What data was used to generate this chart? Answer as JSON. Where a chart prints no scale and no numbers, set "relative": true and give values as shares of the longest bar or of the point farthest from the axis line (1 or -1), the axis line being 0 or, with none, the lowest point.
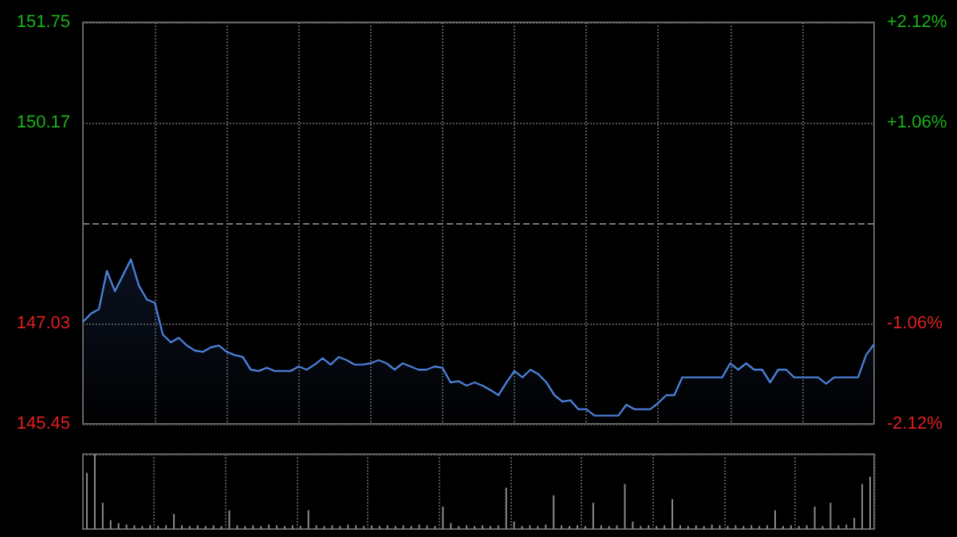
{
  "chart_data": [
    {
      "type": "area",
      "categories": [
        null,
        null,
        null,
        null,
        null,
        null,
        null,
        null,
        null,
        null,
        null,
        null,
        null,
        null,
        null,
        null,
        null,
        null,
        null,
        null,
        null,
        null,
        null,
        null,
        null,
        null,
        null,
        null,
        null,
        null,
        null,
        null,
        null,
        null,
        null,
        null,
        null,
        null,
        null,
        null,
        null,
        null,
        null,
        null,
        null,
        null,
        null,
        null,
        null,
        null,
        null,
        null,
        null,
        null,
        null,
        null,
        null,
        null,
        null,
        null,
        null,
        null,
        null,
        null,
        null,
        null,
        null,
        null,
        null,
        null,
        null,
        null,
        null,
        null,
        null,
        null,
        null,
        null,
        null,
        null,
        null,
        null,
        null,
        null,
        null,
        null,
        null,
        null,
        null,
        null,
        null,
        null,
        null,
        null,
        null,
        null,
        null,
        null,
        null,
        null
      ],
      "series": [
        {
          "color": "#4a7fd6",
          "values": [
            147.05,
            147.18,
            147.25,
            147.85,
            147.53,
            147.78,
            148.03,
            147.62,
            147.4,
            147.35,
            146.85,
            146.73,
            146.8,
            146.68,
            146.6,
            146.58,
            146.65,
            146.68,
            146.58,
            146.53,
            146.5,
            146.3,
            146.28,
            146.33,
            146.28,
            146.28,
            146.28,
            146.35,
            146.3,
            146.38,
            146.48,
            146.38,
            146.5,
            146.45,
            146.38,
            146.38,
            146.4,
            146.45,
            146.4,
            146.3,
            146.4,
            146.35,
            146.3,
            146.3,
            146.35,
            146.33,
            146.1,
            146.12,
            146.05,
            146.1,
            146.05,
            145.98,
            145.9,
            146.1,
            146.28,
            146.18,
            146.3,
            146.23,
            146.1,
            145.9,
            145.8,
            145.82,
            145.68,
            145.68,
            145.58,
            145.58,
            145.58,
            145.58,
            145.75,
            145.68,
            145.68,
            145.68,
            145.78,
            145.9,
            145.9,
            146.18,
            146.18,
            146.18,
            146.18,
            146.18,
            146.18,
            146.4,
            146.3,
            146.4,
            146.3,
            146.3,
            146.1,
            146.3,
            146.3,
            146.18,
            146.18,
            146.18,
            146.18,
            146.08,
            146.18,
            146.18,
            146.18,
            146.18,
            146.53,
            146.7
          ]
        }
      ],
      "ylim": [
        145.45,
        151.75
      ],
      "yticks": [
        145.45,
        147.03,
        150.17,
        151.75
      ],
      "y2lim": [
        -2.12,
        2.12
      ],
      "y2ticks": [
        {
          "value": -2.12,
          "label": "-2.12%"
        },
        {
          "value": -1.06,
          "label": "-1.06%"
        },
        {
          "value": 1.06,
          "label": "+1.06%"
        },
        {
          "value": 2.12,
          "label": "+2.12%"
        }
      ],
      "ref_lines": [
        {
          "axis": "y",
          "value": 148.6,
          "line_style": "dashed",
          "color": "#777777"
        }
      ],
      "grid": true,
      "marker": "none"
    },
    {
      "type": "bar",
      "relative": true,
      "categories": [
        null,
        null,
        null,
        null,
        null,
        null,
        null,
        null,
        null,
        null,
        null,
        null,
        null,
        null,
        null,
        null,
        null,
        null,
        null,
        null,
        null,
        null,
        null,
        null,
        null,
        null,
        null,
        null,
        null,
        null,
        null,
        null,
        null,
        null,
        null,
        null,
        null,
        null,
        null,
        null,
        null,
        null,
        null,
        null,
        null,
        null,
        null,
        null,
        null,
        null,
        null,
        null,
        null,
        null,
        null,
        null,
        null,
        null,
        null,
        null,
        null,
        null,
        null,
        null,
        null,
        null,
        null,
        null,
        null,
        null,
        null,
        null,
        null,
        null,
        null,
        null,
        null,
        null,
        null,
        null,
        null,
        null,
        null,
        null,
        null,
        null,
        null,
        null,
        null,
        null,
        null,
        null,
        null,
        null,
        null,
        null,
        null,
        null,
        null,
        null
      ],
      "color": "#8c8c8c",
      "values": [
        0.75,
        1.0,
        0.35,
        0.12,
        0.08,
        0.06,
        0.05,
        0.04,
        0.05,
        0.04,
        0.05,
        0.2,
        0.05,
        0.04,
        0.05,
        0.04,
        0.05,
        0.04,
        0.25,
        0.05,
        0.04,
        0.05,
        0.04,
        0.06,
        0.05,
        0.04,
        0.05,
        0.04,
        0.25,
        0.05,
        0.04,
        0.05,
        0.04,
        0.06,
        0.05,
        0.04,
        0.05,
        0.04,
        0.05,
        0.04,
        0.05,
        0.04,
        0.06,
        0.05,
        0.04,
        0.3,
        0.08,
        0.04,
        0.05,
        0.04,
        0.05,
        0.04,
        0.05,
        0.55,
        0.1,
        0.04,
        0.05,
        0.04,
        0.06,
        0.45,
        0.05,
        0.04,
        0.05,
        0.04,
        0.35,
        0.05,
        0.04,
        0.05,
        0.6,
        0.1,
        0.04,
        0.05,
        0.04,
        0.05,
        0.4,
        0.05,
        0.04,
        0.05,
        0.04,
        0.06,
        0.05,
        0.04,
        0.05,
        0.04,
        0.05,
        0.04,
        0.05,
        0.25,
        0.04,
        0.05,
        0.04,
        0.05,
        0.3,
        0.04,
        0.35,
        0.05,
        0.06,
        0.15,
        0.6,
        0.7
      ],
      "tick_labels": false,
      "grid": true
    }
  ]
}
